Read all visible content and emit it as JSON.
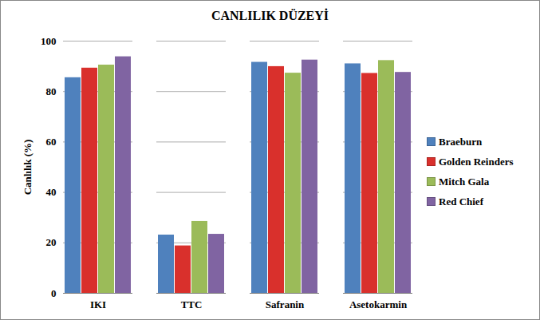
{
  "chart_data": {
    "type": "bar",
    "title": "CANLILIK DÜZEYİ",
    "y_label": "Canlılık (%)",
    "categories": [
      "IKI",
      "TTC",
      "Safranin",
      "Asetokarmin"
    ],
    "series": [
      {
        "name": "Braeburn",
        "color": "#4f81bd",
        "values": [
          85.5,
          23.1,
          91.6,
          91.0
        ]
      },
      {
        "name": "Golden Reinders",
        "color": "#d9302c",
        "values": [
          89.3,
          18.8,
          89.9,
          87.2
        ]
      },
      {
        "name": "Mitch Gala",
        "color": "#9bbb59",
        "values": [
          90.5,
          28.5,
          87.3,
          92.3
        ]
      },
      {
        "name": "Red Chief",
        "color": "#8064a2",
        "values": [
          93.8,
          23.4,
          92.5,
          87.6
        ]
      }
    ],
    "ylim": [
      0,
      100
    ],
    "yticks": [
      0,
      20,
      40,
      60,
      80,
      100
    ],
    "grid": true,
    "legend": "right"
  }
}
